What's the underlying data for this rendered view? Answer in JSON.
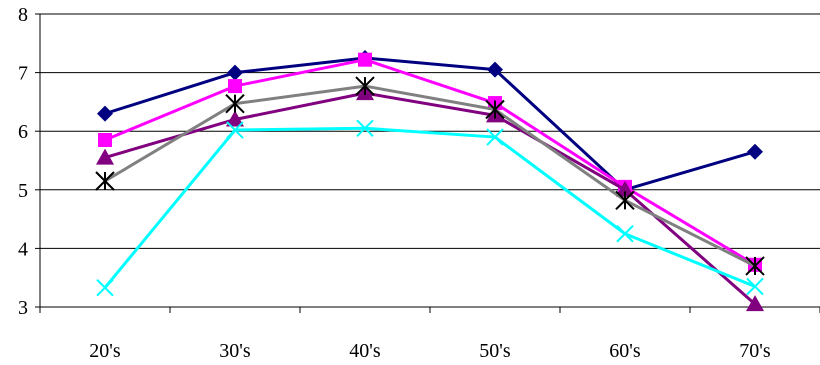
{
  "chart_data": {
    "type": "line",
    "title": "",
    "xlabel": "",
    "ylabel": "",
    "categories": [
      "20's",
      "30's",
      "40's",
      "50's",
      "60's",
      "70's"
    ],
    "ylim": [
      3,
      8
    ],
    "yticks": [
      "3",
      "4",
      "5",
      "6",
      "7",
      "8"
    ],
    "grid": "horizontal",
    "legend": "none",
    "series": [
      {
        "values": [
          6.3,
          7.0,
          7.25,
          7.05,
          5.0,
          5.65
        ],
        "color": "#000080",
        "marker": "diamond"
      },
      {
        "values": [
          5.85,
          6.77,
          7.22,
          6.48,
          5.05,
          3.72
        ],
        "color": "#ff00ff",
        "marker": "square"
      },
      {
        "values": [
          5.55,
          6.2,
          6.65,
          6.27,
          5.0,
          3.05
        ],
        "color": "#800080",
        "marker": "triangle"
      },
      {
        "values": [
          5.15,
          6.47,
          6.77,
          6.37,
          4.82,
          3.7
        ],
        "color": "#808080",
        "marker": "star",
        "marker_color": "#000000"
      },
      {
        "values": [
          3.33,
          6.02,
          6.05,
          5.9,
          4.25,
          3.35
        ],
        "color": "#00ffff",
        "marker": "x"
      }
    ]
  }
}
